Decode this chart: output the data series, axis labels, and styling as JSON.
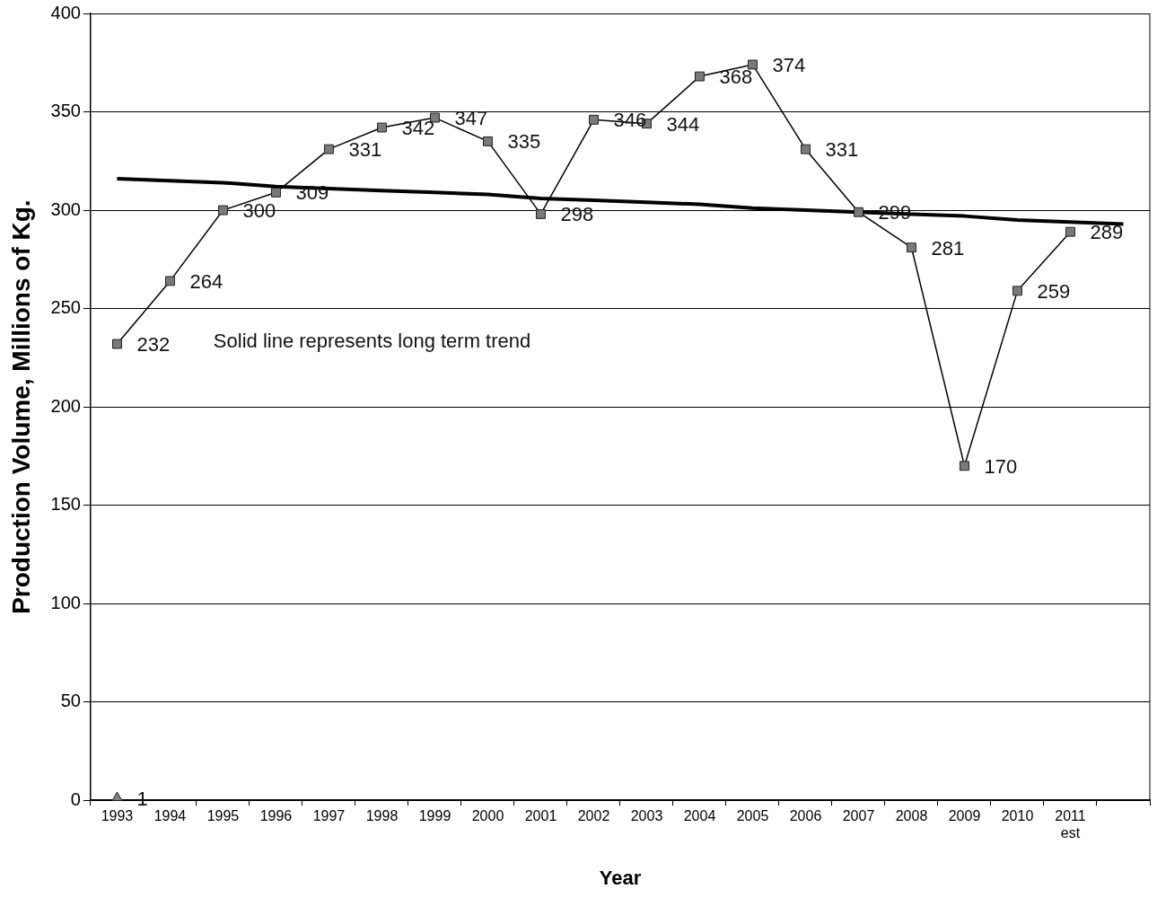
{
  "chart_data": {
    "type": "line",
    "xlabel": "Year",
    "ylabel": "Production Volume, Millions of Kg.",
    "categories": [
      "1993",
      "1994",
      "1995",
      "1996",
      "1997",
      "1998",
      "1999",
      "2000",
      "2001",
      "2002",
      "2003",
      "2004",
      "2005",
      "2006",
      "2007",
      "2008",
      "2009",
      "2010",
      "2011 est",
      null
    ],
    "series": [
      {
        "type": "line",
        "marker": "square",
        "color": "#000000",
        "values": [
          232,
          264,
          300,
          309,
          331,
          342,
          347,
          335,
          298,
          346,
          344,
          368,
          374,
          331,
          299,
          281,
          170,
          259,
          289,
          null
        ],
        "value_labels": [
          "232",
          "264",
          "300",
          "309",
          "331",
          "342",
          "347",
          "335",
          "298",
          "346",
          "344",
          "368",
          "374",
          "331",
          "299",
          "281",
          "170",
          "259",
          "289",
          null
        ]
      },
      {
        "type": "scatter",
        "marker": "triangle",
        "color": "#808080",
        "values": [
          1,
          null,
          null,
          null,
          null,
          null,
          null,
          null,
          null,
          null,
          null,
          null,
          null,
          null,
          null,
          null,
          null,
          null,
          null,
          null
        ],
        "value_labels": [
          "1",
          null,
          null,
          null,
          null,
          null,
          null,
          null,
          null,
          null,
          null,
          null,
          null,
          null,
          null,
          null,
          null,
          null,
          null,
          null
        ]
      },
      {
        "type": "line",
        "marker": "none",
        "color": "#000000",
        "values": [
          316,
          315,
          314,
          312,
          311,
          310,
          309,
          308,
          306,
          305,
          304,
          303,
          301,
          300,
          299,
          298,
          297,
          295,
          294,
          293
        ]
      }
    ],
    "ylim": [
      0,
      400
    ],
    "yticks": [
      0,
      50,
      100,
      150,
      200,
      250,
      300,
      350,
      400
    ],
    "grid": "y",
    "legend": false,
    "line_style": "solid",
    "annotations": [
      "Solid line represents long term trend"
    ]
  }
}
